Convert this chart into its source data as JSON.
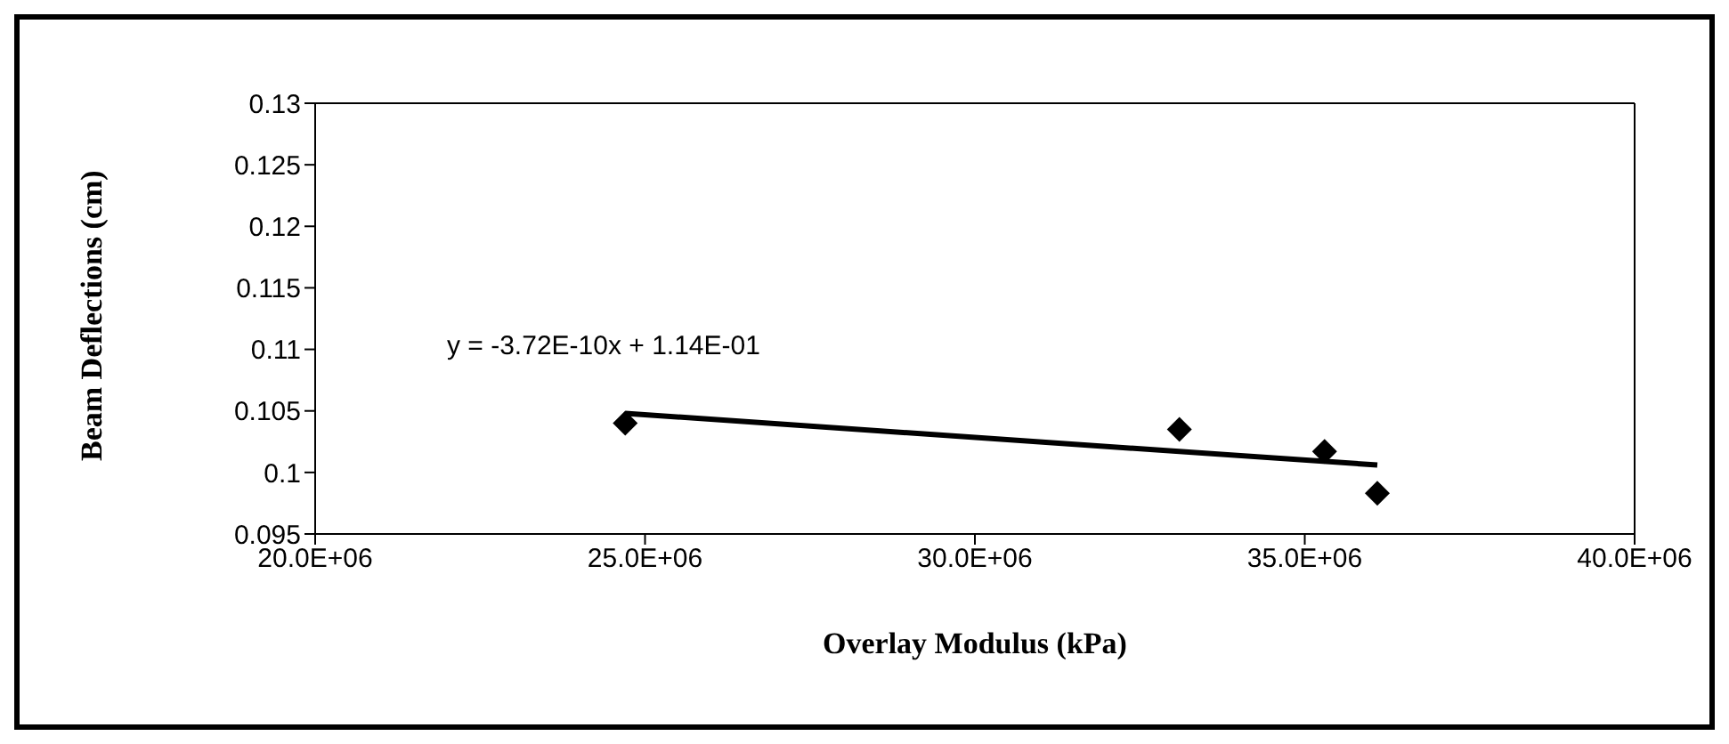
{
  "chart_data": {
    "type": "scatter",
    "xlabel": "Overlay Modulus (kPa)",
    "ylabel": "Beam Deflections (cm)",
    "annotations": [
      "y = -3.72E-10x + 1.14E-01"
    ],
    "series": [
      {
        "color": "#000000",
        "marker": "diamond",
        "x": [
          24700000.0,
          33100000.0,
          35300000.0,
          36100000.0
        ],
        "values": [
          0.104,
          0.1035,
          0.1017,
          0.0983
        ]
      },
      {
        "type": "line",
        "color": "#000000",
        "marker": "none",
        "x": [
          24700000.0,
          36100000.0
        ],
        "values": [
          0.1048,
          0.1006
        ]
      }
    ],
    "xlim": [
      20000000.0,
      40000000.0
    ],
    "xticks": [
      {
        "value": 20000000.0,
        "label": "20.0E+06"
      },
      {
        "value": 25000000.0,
        "label": "25.0E+06"
      },
      {
        "value": 30000000.0,
        "label": "30.0E+06"
      },
      {
        "value": 35000000.0,
        "label": "35.0E+06"
      },
      {
        "value": 40000000.0,
        "label": "40.0E+06"
      }
    ],
    "ylim": [
      0.095,
      0.13
    ],
    "yticks": [
      0.095,
      0.1,
      0.105,
      0.11,
      0.115,
      0.12,
      0.125,
      0.13
    ],
    "grid": false,
    "legend": false
  }
}
